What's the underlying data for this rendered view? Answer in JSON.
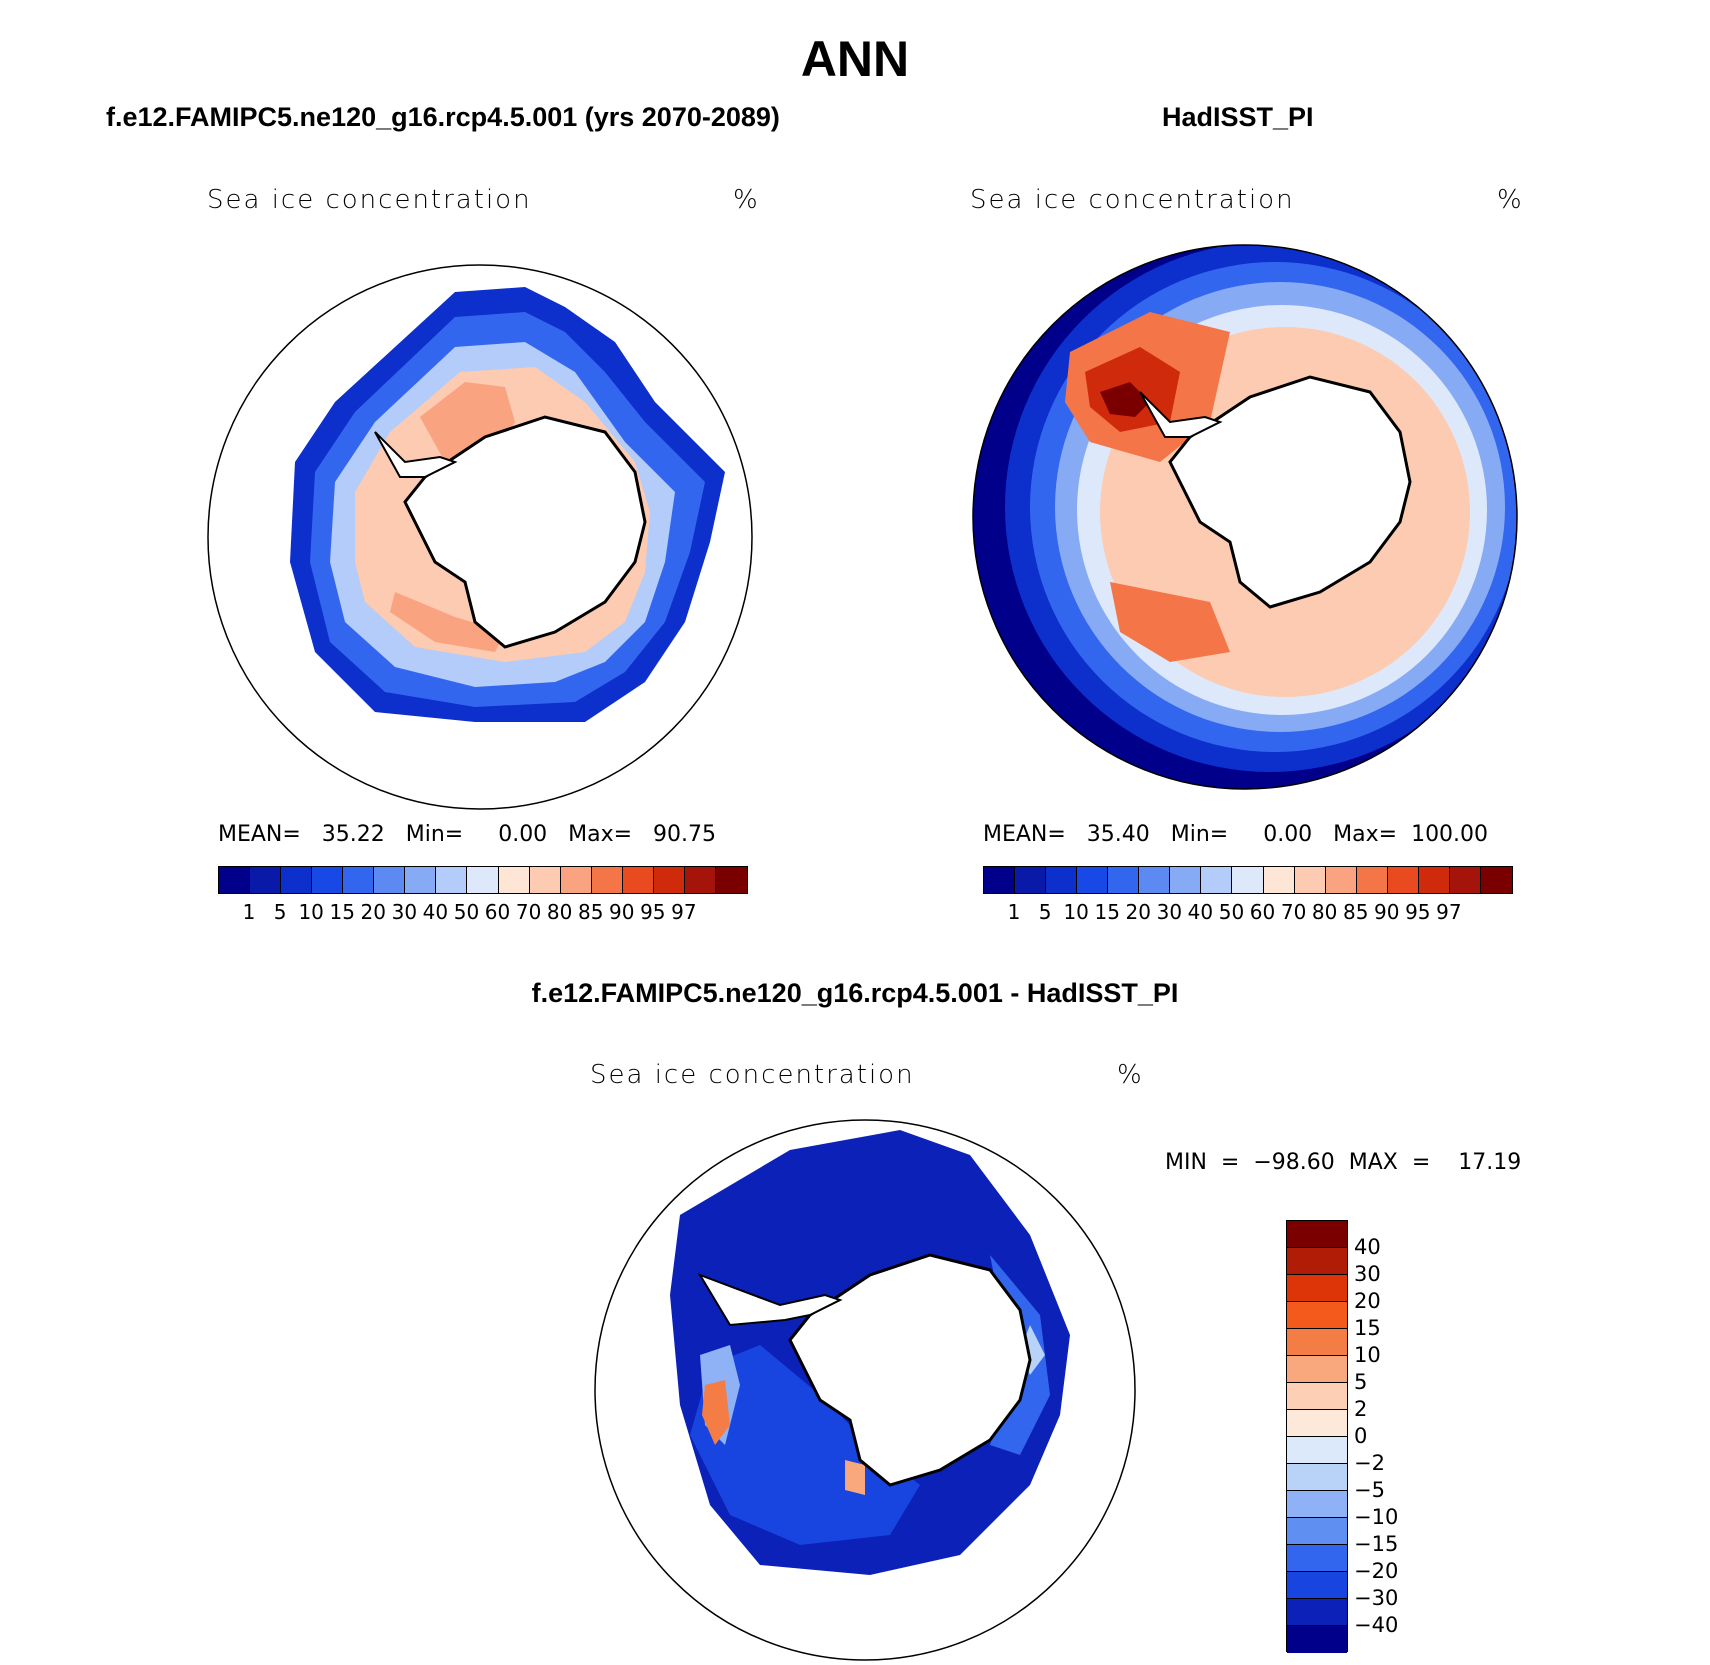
{
  "title": "ANN",
  "panels": [
    {
      "title": "f.e12.FAMIPC5.ne120_g16.rcp4.5.001 (yrs 2070-2089)",
      "variable": "Sea ice concentration",
      "units": "%",
      "stats": "MEAN=   35.22   Min=     0.00   Max=   90.75"
    },
    {
      "title": "HadISST_PI",
      "variable": "Sea ice concentration",
      "units": "%",
      "stats": "MEAN=   35.40   Min=     0.00   Max=  100.00"
    },
    {
      "title": "f.e12.FAMIPC5.ne120_g16.rcp4.5.001 - HadISST_PI",
      "variable": "Sea ice concentration",
      "units": "%",
      "stats": "MIN  =  −98.60  MAX  =    17.19"
    }
  ],
  "chart_data": [
    {
      "type": "heatmap",
      "projection": "south-polar-stereographic",
      "title": "f.e12.FAMIPC5.ne120_g16.rcp4.5.001 (yrs 2070-2089)",
      "variable": "Sea ice concentration",
      "units": "%",
      "mean": 35.22,
      "min": 0.0,
      "max": 90.75,
      "colorbar": {
        "levels": [
          1,
          5,
          10,
          15,
          20,
          30,
          40,
          50,
          60,
          70,
          80,
          85,
          90,
          95,
          97
        ],
        "labels": [
          "1",
          "5",
          "10",
          "15",
          "20",
          "30",
          "40",
          "50",
          "60",
          "70",
          "80",
          "85",
          "90",
          "95",
          "97"
        ],
        "colors": [
          "#00008b",
          "#0a1aa8",
          "#0d2fcc",
          "#1848e6",
          "#3366ee",
          "#5c8af2",
          "#87aaf5",
          "#b3ccf9",
          "#dde9fb",
          "#fde6d6",
          "#fccbb1",
          "#f9a380",
          "#f47548",
          "#ea4a20",
          "#cf2a0c",
          "#a5140a",
          "#7a0000"
        ]
      }
    },
    {
      "type": "heatmap",
      "projection": "south-polar-stereographic",
      "title": "HadISST_PI",
      "variable": "Sea ice concentration",
      "units": "%",
      "mean": 35.4,
      "min": 0.0,
      "max": 100.0,
      "colorbar": {
        "levels": [
          1,
          5,
          10,
          15,
          20,
          30,
          40,
          50,
          60,
          70,
          80,
          85,
          90,
          95,
          97
        ],
        "labels": [
          "1",
          "5",
          "10",
          "15",
          "20",
          "30",
          "40",
          "50",
          "60",
          "70",
          "80",
          "85",
          "90",
          "95",
          "97"
        ],
        "colors": [
          "#00008b",
          "#0a1aa8",
          "#0d2fcc",
          "#1848e6",
          "#3366ee",
          "#5c8af2",
          "#87aaf5",
          "#b3ccf9",
          "#dde9fb",
          "#fde6d6",
          "#fccbb1",
          "#f9a380",
          "#f47548",
          "#ea4a20",
          "#cf2a0c",
          "#a5140a",
          "#7a0000"
        ]
      }
    },
    {
      "type": "heatmap",
      "projection": "south-polar-stereographic",
      "title": "f.e12.FAMIPC5.ne120_g16.rcp4.5.001 - HadISST_PI",
      "variable": "Sea ice concentration",
      "units": "%",
      "min": -98.6,
      "max": 17.19,
      "colorbar": {
        "orientation": "vertical",
        "levels": [
          40,
          30,
          20,
          15,
          10,
          5,
          2,
          0,
          -2,
          -5,
          -10,
          -15,
          -20,
          -30,
          -40
        ],
        "labels": [
          "40",
          "30",
          "20",
          "15",
          "10",
          "5",
          "2",
          "0",
          "−2",
          "−5",
          "−10",
          "−15",
          "−20",
          "−30",
          "−40"
        ],
        "colors": [
          "#7a0000",
          "#b01c05",
          "#dd3508",
          "#f55a1d",
          "#f47d45",
          "#f9a87e",
          "#fdcfb4",
          "#fde9da",
          "#dbe9fa",
          "#b8d2f8",
          "#8eb2f5",
          "#5f8ff0",
          "#3366ee",
          "#1844e0",
          "#0b21b8",
          "#00008b"
        ]
      }
    }
  ]
}
